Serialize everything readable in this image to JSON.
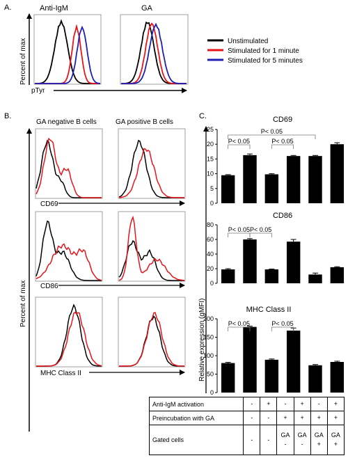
{
  "panel_labels": {
    "a": "A.",
    "b": "B.",
    "c": "C."
  },
  "panel_a": {
    "subtitles": [
      "Anti-IgM",
      "GA"
    ],
    "ylabel": "Percent of max",
    "xlabel": "pTyr",
    "legend": [
      {
        "label": "Unstimulated",
        "color": "#000000"
      },
      {
        "label": "Stimulated for 1 minute",
        "color": "#e8141b"
      },
      {
        "label": "Stimulated for 5 minutes",
        "color": "#1f1fb8"
      }
    ]
  },
  "panel_b": {
    "column_titles": [
      "GA negative B cells",
      "GA positive B cells"
    ],
    "ylabel": "Percent of max",
    "row_labels": [
      "CD69",
      "CD86",
      "MHC Class II"
    ]
  },
  "panel_c": {
    "ylabel": "Relative expression (gMFI)"
  },
  "colors": {
    "black": "#000000",
    "red": "#e8141b",
    "blue": "#1f1fb8"
  },
  "chart_data": [
    {
      "type": "bar",
      "title": "CD69",
      "categories": [
        "1",
        "2",
        "3",
        "4",
        "5",
        "6"
      ],
      "values": [
        9.5,
        16.3,
        9.8,
        16.0,
        16.0,
        20.0
      ],
      "errors": [
        0.2,
        0.4,
        0.2,
        0.2,
        0.2,
        0.5
      ],
      "ylim": [
        0,
        25
      ],
      "yticks": [
        0,
        5,
        10,
        15,
        20,
        25
      ],
      "annotations": [
        {
          "text": "P< 0.05",
          "from": 1,
          "to": 2
        },
        {
          "text": "P< 0.05",
          "from": 3,
          "to": 4
        },
        {
          "text": "P< 0.05",
          "from": 1,
          "to": 5
        }
      ]
    },
    {
      "type": "bar",
      "title": "CD86",
      "categories": [
        "1",
        "2",
        "3",
        "4",
        "5",
        "6"
      ],
      "values": [
        19,
        60,
        19,
        57,
        12,
        22
      ],
      "errors": [
        1,
        1.2,
        0.5,
        3,
        2,
        0.7
      ],
      "ylim": [
        0,
        80
      ],
      "yticks": [
        0,
        20,
        40,
        60,
        80
      ],
      "annotations": [
        {
          "text": "P< 0.05",
          "from": 1,
          "to": 2
        },
        {
          "text": "P< 0.05",
          "from": 2,
          "to": 3
        }
      ]
    },
    {
      "type": "bar",
      "title": "MHC Class II",
      "categories": [
        "1",
        "2",
        "3",
        "4",
        "5",
        "6"
      ],
      "values": [
        80,
        178,
        89,
        168,
        74,
        83
      ],
      "errors": [
        2,
        2,
        2,
        7,
        2,
        2
      ],
      "ylim": [
        0,
        200
      ],
      "yticks": [
        0,
        50,
        100,
        150,
        200
      ],
      "annotations": [
        {
          "text": "P< 0.05",
          "from": 1,
          "to": 2
        },
        {
          "text": "P< 0.05",
          "from": 3,
          "to": 4
        }
      ]
    }
  ],
  "table": {
    "rows": [
      {
        "label": "Anti-IgM activation",
        "cells": [
          [
            "-"
          ],
          [
            "+"
          ],
          [
            "-"
          ],
          [
            "+"
          ],
          [
            "-"
          ],
          [
            "+"
          ]
        ]
      },
      {
        "label": "Preincubation with GA",
        "cells": [
          [
            "-"
          ],
          [
            "-"
          ],
          [
            "+"
          ],
          [
            "+"
          ],
          [
            "+"
          ],
          [
            "+"
          ]
        ]
      },
      {
        "label": "Gated cells",
        "cells": [
          [
            "-"
          ],
          [
            "-"
          ],
          [
            "GA",
            "-"
          ],
          [
            "GA",
            "-"
          ],
          [
            "GA",
            "+"
          ],
          [
            "GA",
            "+"
          ]
        ]
      }
    ]
  }
}
